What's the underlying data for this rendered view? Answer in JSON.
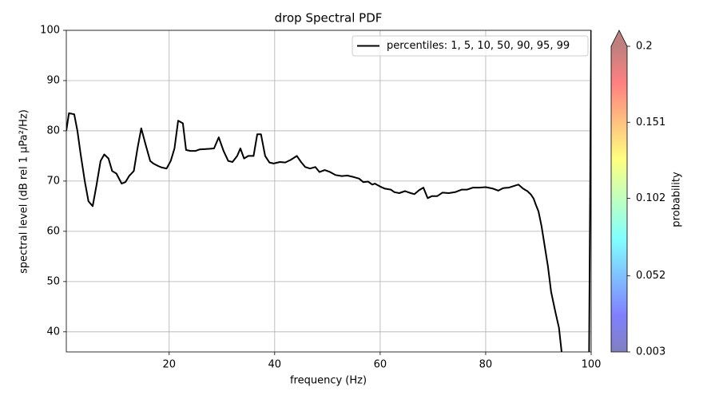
{
  "chart_data": {
    "type": "line",
    "title": "drop Spectral PDF",
    "xlabel": "frequency (Hz)",
    "ylabel": "spectral level (dB rel 1 µPa²/Hz)",
    "xlim": [
      0.5,
      100
    ],
    "ylim": [
      36,
      100
    ],
    "xticks": [
      20,
      40,
      60,
      80,
      100
    ],
    "yticks": [
      40,
      50,
      60,
      70,
      80,
      90,
      100
    ],
    "grid": true,
    "legend": "upper right",
    "x": [
      0.5,
      1,
      2,
      2.6,
      3.2,
      4,
      4.7,
      5.5,
      6.2,
      7,
      7.7,
      8.5,
      9.2,
      10,
      11,
      11.7,
      12.4,
      13.3,
      14,
      14.7,
      15.6,
      16.4,
      17,
      17.9,
      18.6,
      19.5,
      20.3,
      21,
      21.7,
      22.6,
      23.2,
      24,
      25,
      25.8,
      27.3,
      28.5,
      29.4,
      30.3,
      31.2,
      32,
      32.9,
      33.5,
      34.2,
      35,
      36,
      36.7,
      37.4,
      38.2,
      39,
      39.8,
      41,
      42,
      43,
      44.2,
      45,
      45.8,
      46.7,
      47.7,
      48.5,
      49.5,
      50.5,
      51.5,
      52.7,
      53.8,
      55,
      56,
      56.8,
      57.7,
      58.5,
      59,
      60,
      60.9,
      62,
      62.7,
      63.6,
      64.7,
      65.8,
      66.5,
      67.4,
      68.2,
      69,
      69.8,
      70.8,
      71.8,
      73,
      74.2,
      75.5,
      76.5,
      77.6,
      78.8,
      80,
      81.4,
      82.4,
      83.3,
      84.4,
      85.3,
      86.2,
      87.1,
      87.9,
      88.6,
      89.1,
      89.5,
      90,
      90.6,
      91.2,
      91.8,
      92.4,
      93.2,
      93.9,
      94.4,
      99,
      99.6,
      100
    ],
    "series": [
      {
        "name": "percentiles: 1, 5, 10, 50, 90, 95, 99",
        "color": "#000000",
        "values": [
          80,
          83.5,
          83.3,
          80,
          75.5,
          70,
          66,
          65,
          69,
          74,
          75.3,
          74.5,
          72,
          71.5,
          69.5,
          69.8,
          71,
          72,
          76.5,
          80.5,
          77,
          74,
          73.5,
          73,
          72.7,
          72.5,
          74,
          76.5,
          82,
          81.5,
          76.2,
          76,
          76,
          76.3,
          76.4,
          76.5,
          78.7,
          76,
          74,
          73.8,
          75,
          76.5,
          74.5,
          75,
          75,
          79.3,
          79.3,
          75,
          73.7,
          73.5,
          73.8,
          73.7,
          74.2,
          75,
          73.8,
          72.8,
          72.5,
          72.8,
          71.8,
          72.2,
          71.8,
          71.2,
          71,
          71.1,
          70.8,
          70.5,
          69.8,
          69.9,
          69.3,
          69.5,
          68.9,
          68.5,
          68.3,
          67.8,
          67.6,
          68,
          67.6,
          67.4,
          68.2,
          68.7,
          66.6,
          67,
          67,
          67.7,
          67.6,
          67.8,
          68.3,
          68.3,
          68.7,
          68.7,
          68.8,
          68.5,
          68.1,
          68.6,
          68.7,
          69,
          69.3,
          68.5,
          68,
          67.3,
          66.5,
          65.3,
          64,
          61,
          57,
          53,
          48,
          44,
          40.8,
          36,
          null,
          36,
          100
        ]
      }
    ],
    "colorbar": {
      "label": "probability",
      "lim": [
        0.003,
        0.2
      ],
      "ticks": [
        0.003,
        0.052,
        0.102,
        0.151,
        0.2
      ]
    }
  }
}
